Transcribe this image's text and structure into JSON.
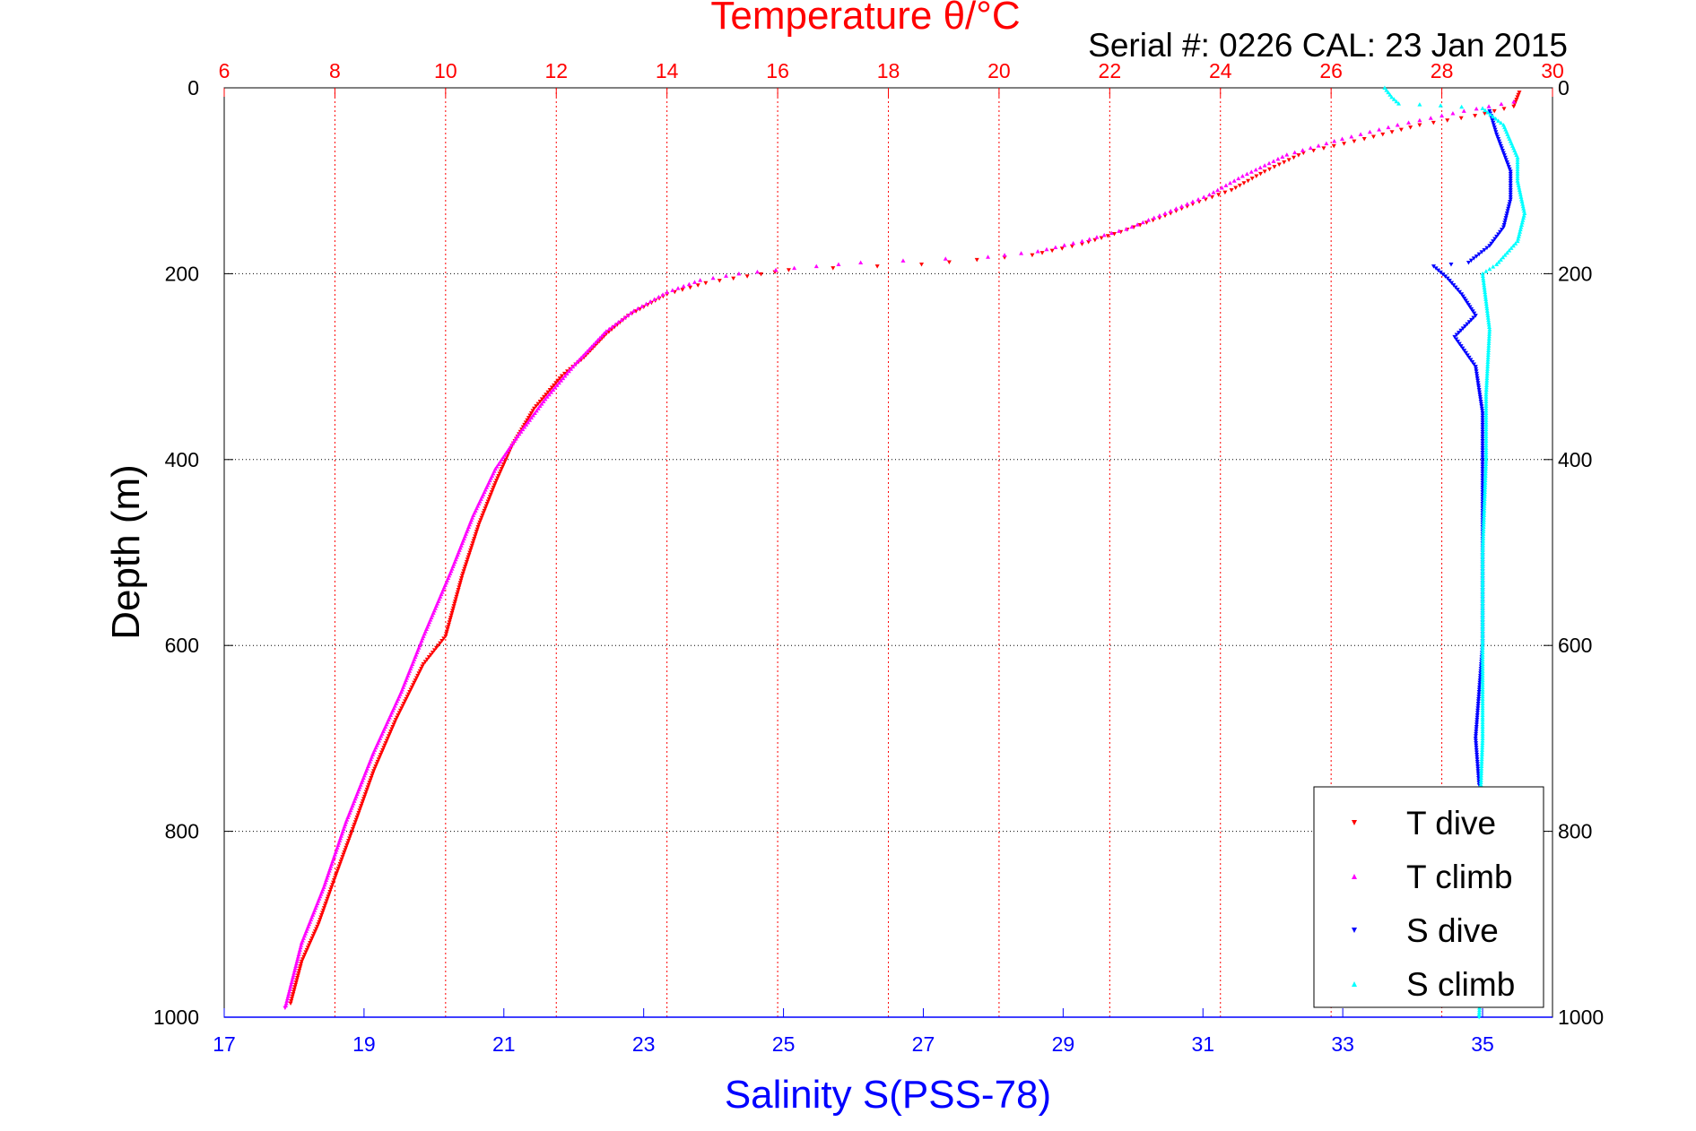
{
  "chart_data": {
    "type": "scatter",
    "title": "Temperature θ/°C",
    "subtitle": "Serial #: 0226  CAL: 23 Jan 2015",
    "xlabel": "Salinity S(PSS-78)",
    "ylabel": "Depth (m)",
    "x_temp_lim": [
      6,
      30
    ],
    "x_temp_ticks": [
      "6",
      "8",
      "10",
      "12",
      "14",
      "16",
      "18",
      "20",
      "22",
      "24",
      "26",
      "28",
      "30"
    ],
    "x_sal_lim": [
      17,
      36
    ],
    "x_sal_ticks": [
      "17",
      "19",
      "21",
      "23",
      "25",
      "27",
      "29",
      "31",
      "33",
      "35"
    ],
    "ylim": [
      0,
      1000
    ],
    "y_ticks": [
      "0",
      "200",
      "400",
      "600",
      "800",
      "1000"
    ],
    "y_reversed": true,
    "grid": true,
    "legend_position": "bottom-right",
    "colors": {
      "t_dive": "#ff0000",
      "t_climb": "#ff00ff",
      "s_dive": "#0000ff",
      "s_climb": "#00ffff",
      "temp_axis": "#ff0000",
      "sal_axis": "#0000ff"
    },
    "series": [
      {
        "name": "T dive",
        "axis": "temperature",
        "points": [
          [
            29.4,
            5
          ],
          [
            29.3,
            20
          ],
          [
            28.6,
            30
          ],
          [
            27.6,
            40
          ],
          [
            26.6,
            55
          ],
          [
            25.5,
            70
          ],
          [
            24.8,
            90
          ],
          [
            24.2,
            110
          ],
          [
            23.5,
            125
          ],
          [
            22.9,
            140
          ],
          [
            22.2,
            155
          ],
          [
            21.5,
            168
          ],
          [
            20.6,
            180
          ],
          [
            18.6,
            190
          ],
          [
            16.2,
            196
          ],
          [
            15.2,
            205
          ],
          [
            14.7,
            210
          ],
          [
            14.0,
            222
          ],
          [
            13.3,
            245
          ],
          [
            12.9,
            265
          ],
          [
            12.5,
            290
          ],
          [
            12.1,
            310
          ],
          [
            11.6,
            345
          ],
          [
            11.2,
            385
          ],
          [
            10.9,
            425
          ],
          [
            10.6,
            470
          ],
          [
            10.3,
            525
          ],
          [
            10.0,
            590
          ],
          [
            9.6,
            620
          ],
          [
            9.1,
            680
          ],
          [
            8.7,
            735
          ],
          [
            8.4,
            785
          ],
          [
            8.0,
            850
          ],
          [
            7.7,
            900
          ],
          [
            7.4,
            940
          ],
          [
            7.2,
            985
          ]
        ]
      },
      {
        "name": "T climb",
        "axis": "temperature",
        "points": [
          [
            29.3,
            15
          ],
          [
            28.4,
            25
          ],
          [
            27.2,
            40
          ],
          [
            26.2,
            55
          ],
          [
            25.2,
            72
          ],
          [
            24.4,
            95
          ],
          [
            23.8,
            115
          ],
          [
            23.0,
            135
          ],
          [
            22.3,
            152
          ],
          [
            21.5,
            165
          ],
          [
            20.7,
            176
          ],
          [
            19.8,
            182
          ],
          [
            17.5,
            188
          ],
          [
            16.3,
            194
          ],
          [
            15.3,
            200
          ],
          [
            14.6,
            207
          ],
          [
            14.0,
            220
          ],
          [
            13.4,
            240
          ],
          [
            12.9,
            262
          ],
          [
            12.3,
            300
          ],
          [
            11.8,
            335
          ],
          [
            11.3,
            375
          ],
          [
            10.9,
            410
          ],
          [
            10.5,
            460
          ],
          [
            10.1,
            520
          ],
          [
            9.6,
            590
          ],
          [
            9.2,
            650
          ],
          [
            8.7,
            715
          ],
          [
            8.2,
            790
          ],
          [
            7.8,
            860
          ],
          [
            7.4,
            920
          ],
          [
            7.1,
            990
          ]
        ]
      },
      {
        "name": "S dive",
        "axis": "salinity",
        "points": [
          [
            35.1,
            25
          ],
          [
            35.2,
            50
          ],
          [
            35.3,
            70
          ],
          [
            35.4,
            90
          ],
          [
            35.4,
            120
          ],
          [
            35.3,
            150
          ],
          [
            35.1,
            170
          ],
          [
            34.8,
            188
          ],
          [
            34.3,
            192
          ],
          [
            34.5,
            205
          ],
          [
            34.7,
            222
          ],
          [
            34.9,
            245
          ],
          [
            34.6,
            268
          ],
          [
            34.9,
            300
          ],
          [
            35.0,
            350
          ],
          [
            35.0,
            420
          ],
          [
            35.0,
            500
          ],
          [
            35.0,
            600
          ],
          [
            34.9,
            700
          ],
          [
            34.95,
            750
          ]
        ]
      },
      {
        "name": "S climb",
        "axis": "salinity",
        "points": [
          [
            33.6,
            0
          ],
          [
            33.7,
            10
          ],
          [
            33.8,
            17
          ],
          [
            34.4,
            19
          ],
          [
            35.0,
            22
          ],
          [
            35.3,
            40
          ],
          [
            35.5,
            75
          ],
          [
            35.5,
            100
          ],
          [
            35.6,
            135
          ],
          [
            35.5,
            165
          ],
          [
            35.2,
            190
          ],
          [
            35.0,
            200
          ],
          [
            35.1,
            260
          ],
          [
            35.05,
            330
          ],
          [
            35.05,
            400
          ],
          [
            35.0,
            500
          ],
          [
            35.0,
            600
          ],
          [
            35.0,
            700
          ],
          [
            34.95,
            800
          ],
          [
            35.0,
            900
          ],
          [
            34.95,
            1000
          ]
        ]
      }
    ]
  }
}
